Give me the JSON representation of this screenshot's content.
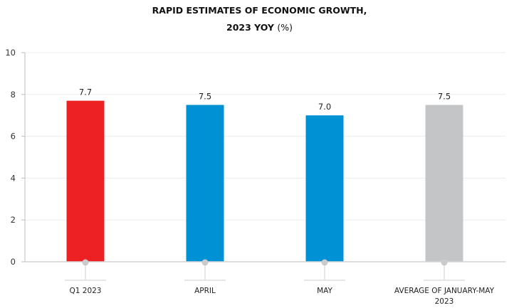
{
  "chart_data": {
    "type": "bar",
    "title_line1": "RAPID ESTIMATES OF ECONOMIC GROWTH,",
    "title_line2_bold": "2023 YOY",
    "title_line2_unit": "(%)",
    "xlabel": "",
    "ylabel": "",
    "ylim": [
      0,
      10
    ],
    "yticks": [
      "0",
      "2",
      "4",
      "6",
      "8",
      "10"
    ],
    "grid": true,
    "categories": [
      [
        "Q1 2023"
      ],
      [
        "APRIL"
      ],
      [
        "MAY"
      ],
      [
        "AVERAGE OF JANUARY-MAY",
        "2023"
      ]
    ],
    "values": [
      7.7,
      7.5,
      7.0,
      7.5
    ],
    "value_labels": [
      "7.7",
      "7.5",
      "7.0",
      "7.5"
    ],
    "bar_colors": [
      "#ed2024",
      "#0090d4",
      "#0090d4",
      "#c4c5c7"
    ]
  }
}
